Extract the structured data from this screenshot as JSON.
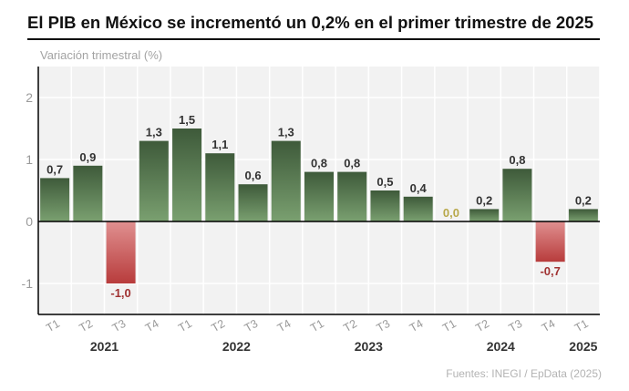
{
  "header": {
    "title": "El PIB en México se incrementó un 0,2% en el primer trimestre de 2025",
    "subtitle": "Variación trimestral (%)"
  },
  "footer": {
    "source": "Fuentes: INEGI / EpData (2025)"
  },
  "colors": {
    "positive_top": "#3e5a3a",
    "positive_bottom": "#7aa070",
    "negative_top": "#e09090",
    "negative_bottom": "#b83c3c",
    "positive_label": "#333333",
    "negative_label": "#a03232",
    "zero_label": "#b8a84a",
    "plot_bg": "#f2f2f2",
    "grid": "#ffffff",
    "axis_text": "#9a9a9a",
    "year_text": "#333333"
  },
  "chart_data": {
    "type": "bar",
    "title": "El PIB en México se incrementó un 0,2% en el primer trimestre de 2025",
    "ylabel": "Variación trimestral (%)",
    "ylim": [
      -1.5,
      2.5
    ],
    "yticks": [
      -1,
      0,
      1,
      2
    ],
    "ytick_labels": [
      "-1",
      "0",
      "1",
      "2"
    ],
    "grid": true,
    "categories": [
      "T1",
      "T2",
      "T3",
      "T4",
      "T1",
      "T2",
      "T3",
      "T4",
      "T1",
      "T2",
      "T3",
      "T4",
      "T1",
      "T2",
      "T3",
      "T4",
      "T1"
    ],
    "values": [
      0.7,
      0.9,
      -1.0,
      1.3,
      1.5,
      1.1,
      0.6,
      1.3,
      0.8,
      0.8,
      0.5,
      0.4,
      0.0,
      0.2,
      0.85,
      -0.65,
      0.2
    ],
    "data_labels": [
      "0,7",
      "0,9",
      "-1,0",
      "1,3",
      "1,5",
      "1,1",
      "0,6",
      "1,3",
      "0,8",
      "0,8",
      "0,5",
      "0,4",
      "0,0",
      "0,2",
      "0,8",
      "-0,7",
      "0,2"
    ],
    "years": [
      {
        "label": "2021",
        "start": 0,
        "end": 3
      },
      {
        "label": "2022",
        "start": 4,
        "end": 7
      },
      {
        "label": "2023",
        "start": 8,
        "end": 11
      },
      {
        "label": "2024",
        "start": 12,
        "end": 15
      },
      {
        "label": "2025",
        "start": 16,
        "end": 16
      }
    ]
  }
}
